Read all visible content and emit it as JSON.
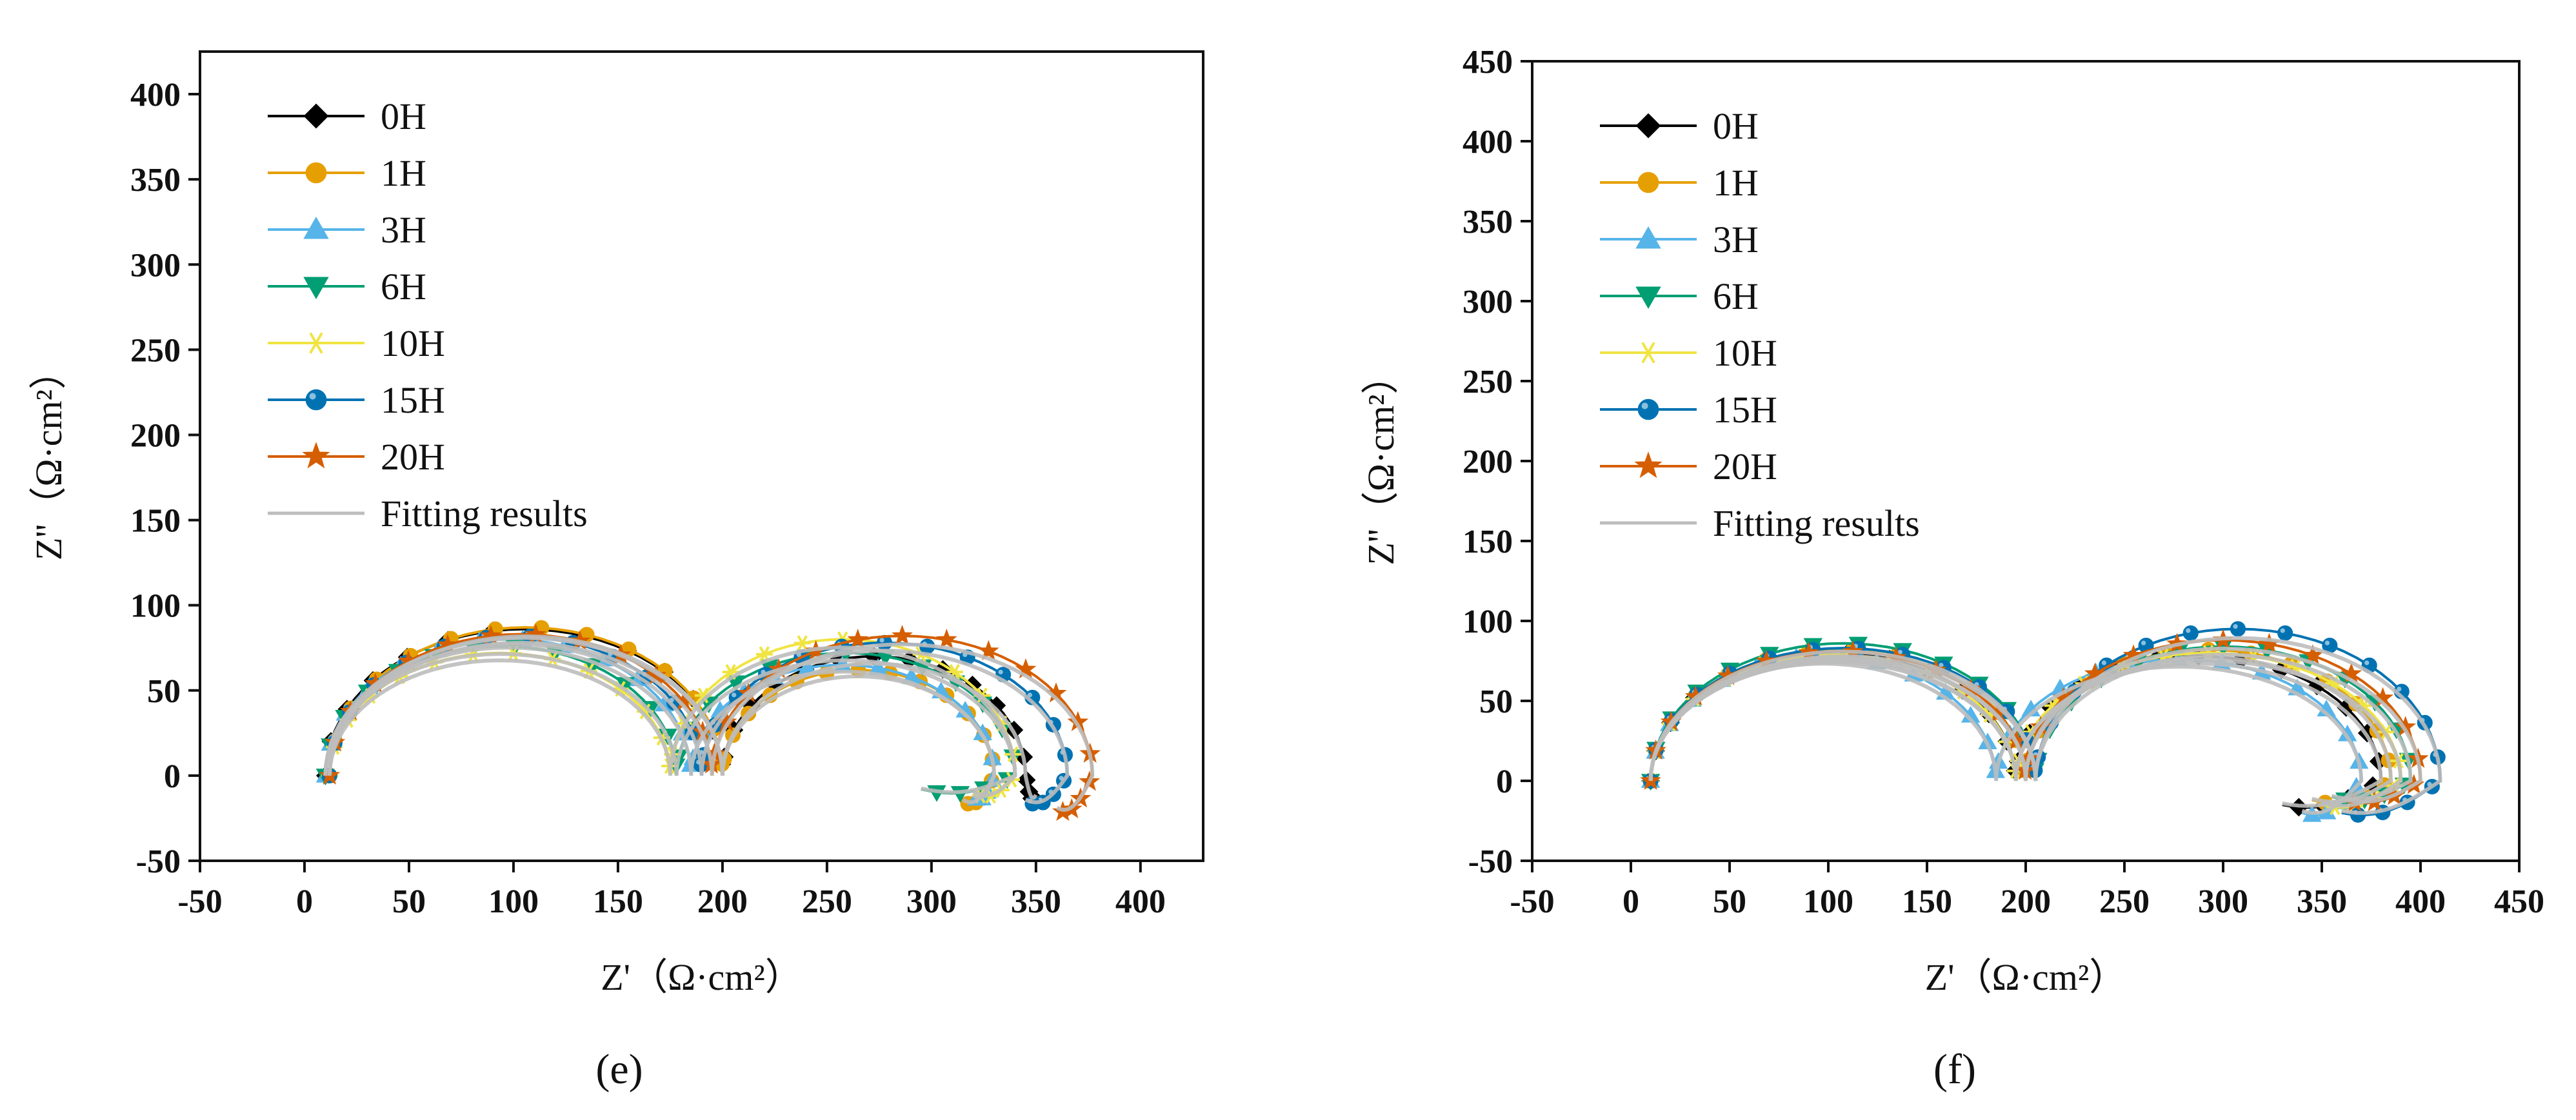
{
  "chart_data": [
    {
      "panel_label": "(e)",
      "type": "scatter",
      "xlabel": "Z'（Ω·cm²）",
      "ylabel": "Z''（Ω·cm²）",
      "xlim": [
        -50,
        430
      ],
      "ylim": [
        -50,
        425
      ],
      "xticks": [
        -50,
        0,
        50,
        100,
        150,
        200,
        250,
        300,
        350,
        400
      ],
      "yticks": [
        -50,
        0,
        50,
        100,
        150,
        200,
        250,
        300,
        350,
        400
      ],
      "legend_position": "top-left",
      "fit_label": "Fitting results",
      "series": [
        {
          "name": "0H",
          "color": "#000000",
          "marker": "diamond",
          "r1": 95,
          "loop1_start": 10,
          "loop1_end": 200,
          "a1": 86,
          "loop2_end": 345,
          "a2": 70,
          "tail": [
            350,
            -12
          ]
        },
        {
          "name": "1H",
          "color": "#E69F00",
          "marker": "circle",
          "r1": 95,
          "loop1_start": 12,
          "loop1_end": 200,
          "a1": 87,
          "loop2_end": 330,
          "a2": 62,
          "tail": [
            315,
            -15
          ]
        },
        {
          "name": "3H",
          "color": "#56B4E9",
          "marker": "triangle",
          "r1": 92,
          "loop1_start": 10,
          "loop1_end": 185,
          "a1": 80,
          "loop2_end": 330,
          "a2": 65,
          "tail": [
            320,
            -12
          ]
        },
        {
          "name": "6H",
          "color": "#009E73",
          "marker": "tri-down",
          "r1": 90,
          "loop1_start": 10,
          "loop1_end": 178,
          "a1": 76,
          "loop2_end": 340,
          "a2": 72,
          "tail": [
            295,
            -8
          ]
        },
        {
          "name": "10H",
          "color": "#F0E442",
          "marker": "star6",
          "r1": 88,
          "loop1_start": 12,
          "loop1_end": 175,
          "a1": 72,
          "loop2_end": 340,
          "a2": 80,
          "tail": [
            320,
            -10
          ]
        },
        {
          "name": "15H",
          "color": "#0072B2",
          "marker": "sphere",
          "r1": 95,
          "loop1_start": 12,
          "loop1_end": 190,
          "a1": 82,
          "loop2_end": 365,
          "a2": 78,
          "tail": [
            345,
            -15
          ]
        },
        {
          "name": "20H",
          "color": "#D55E00",
          "marker": "star",
          "r1": 95,
          "loop1_start": 12,
          "loop1_end": 195,
          "a1": 83,
          "loop2_end": 377,
          "a2": 82,
          "tail": [
            360,
            -20
          ]
        }
      ]
    },
    {
      "panel_label": "(f)",
      "type": "scatter",
      "xlabel": "Z'（Ω·cm²）",
      "ylabel": "Z''（Ω·cm²）",
      "xlim": [
        -50,
        450
      ],
      "ylim": [
        -50,
        450
      ],
      "xticks": [
        -50,
        0,
        50,
        100,
        150,
        200,
        250,
        300,
        350,
        400,
        450
      ],
      "yticks": [
        -50,
        0,
        50,
        100,
        150,
        200,
        250,
        300,
        350,
        400,
        450
      ],
      "legend_position": "top-left",
      "fit_label": "Fitting results",
      "series": [
        {
          "name": "0H",
          "color": "#000000",
          "marker": "diamond",
          "loop1_start": 10,
          "loop1_end": 195,
          "a1": 80,
          "loop2_end": 380,
          "a2": 78,
          "tail": [
            330,
            -15
          ]
        },
        {
          "name": "1H",
          "color": "#E69F00",
          "marker": "circle",
          "loop1_start": 10,
          "loop1_end": 200,
          "a1": 82,
          "loop2_end": 385,
          "a2": 82,
          "tail": [
            345,
            -12
          ]
        },
        {
          "name": "3H",
          "color": "#56B4E9",
          "marker": "triangle",
          "loop1_start": 10,
          "loop1_end": 185,
          "a1": 78,
          "loop2_end": 370,
          "a2": 76,
          "tail": [
            340,
            -20
          ]
        },
        {
          "name": "6H",
          "color": "#009E73",
          "marker": "tri-down",
          "loop1_start": 10,
          "loop1_end": 205,
          "a1": 86,
          "loop2_end": 395,
          "a2": 84,
          "tail": [
            355,
            -10
          ]
        },
        {
          "name": "10H",
          "color": "#F0E442",
          "marker": "star6",
          "loop1_start": 10,
          "loop1_end": 195,
          "a1": 79,
          "loop2_end": 390,
          "a2": 80,
          "tail": [
            350,
            -15
          ]
        },
        {
          "name": "15H",
          "color": "#0072B2",
          "marker": "sphere",
          "loop1_start": 10,
          "loop1_end": 205,
          "a1": 83,
          "loop2_end": 410,
          "a2": 95,
          "tail": [
            360,
            -20
          ]
        },
        {
          "name": "20H",
          "color": "#D55E00",
          "marker": "star",
          "loop1_start": 10,
          "loop1_end": 200,
          "a1": 81,
          "loop2_end": 400,
          "a2": 88,
          "tail": [
            360,
            -12
          ]
        }
      ]
    }
  ]
}
